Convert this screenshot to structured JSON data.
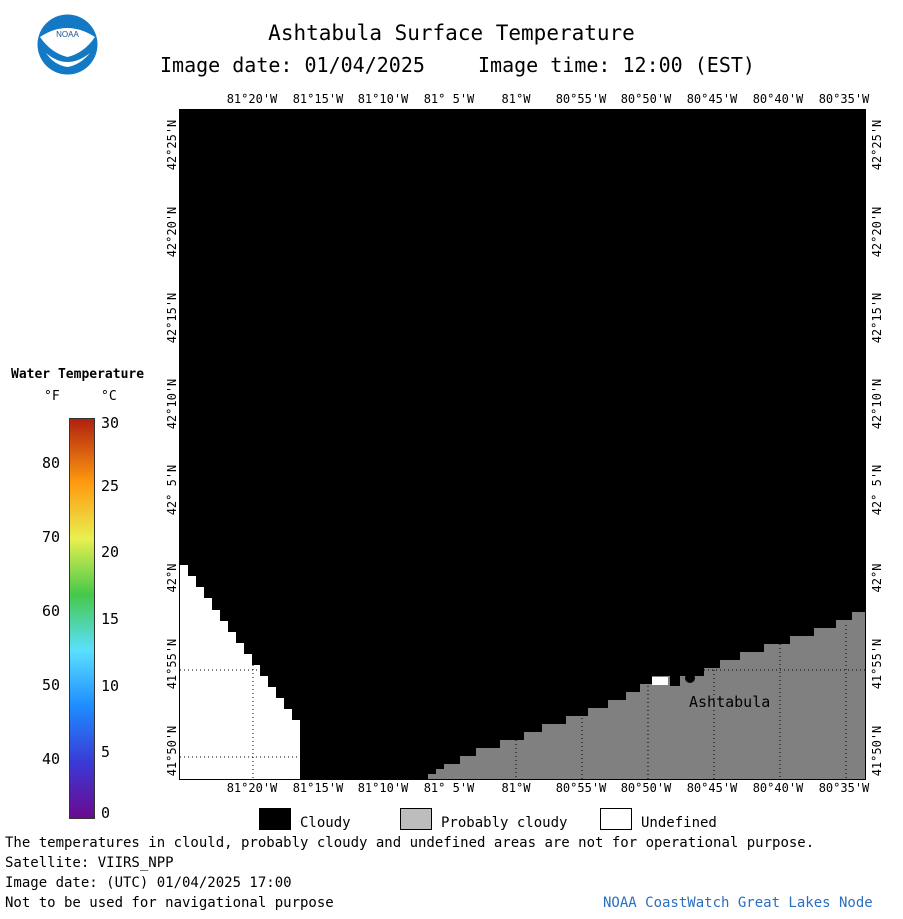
{
  "header": {
    "title": "Ashtabula Surface Temperature",
    "image_date": "Image date: 01/04/2025",
    "image_time": "Image time: 12:00 (EST)"
  },
  "map": {
    "lon_ticks": [
      "81°20'W",
      "81°15'W",
      "81°10'W",
      "81° 5'W",
      "81°W",
      "80°55'W",
      "80°50'W",
      "80°45'W",
      "80°40'W",
      "80°35'W"
    ],
    "lat_ticks": [
      "42°25'N",
      "42°20'N",
      "42°15'N",
      "42°10'N",
      "42° 5'N",
      "42°N",
      "41°55'N",
      "41°50'N"
    ],
    "city_label": "Ashtabula",
    "colors": {
      "cloudy": "#000000",
      "probably_cloudy": "#808080",
      "undefined": "#ffffff"
    }
  },
  "scale": {
    "title": "Water Temperature",
    "unit_f": "°F",
    "unit_c": "°C",
    "f_ticks": [
      "80",
      "70",
      "60",
      "50",
      "40"
    ],
    "c_ticks": [
      "30",
      "25",
      "20",
      "15",
      "10",
      "5",
      "0"
    ]
  },
  "legend": {
    "cloudy": "Cloudy",
    "probably_cloudy": "Probably cloudy",
    "undefined": "Undefined"
  },
  "footer": {
    "note": "The temperatures in clould, probably cloudy and undefined areas are not for operational purpose.",
    "satellite": "Satellite: VIIRS_NPP",
    "utc_date": "Image date: (UTC) 01/04/2025  17:00",
    "nav_warning": "Not to be used for navigational purpose",
    "credit": "NOAA CoastWatch Great Lakes Node"
  }
}
